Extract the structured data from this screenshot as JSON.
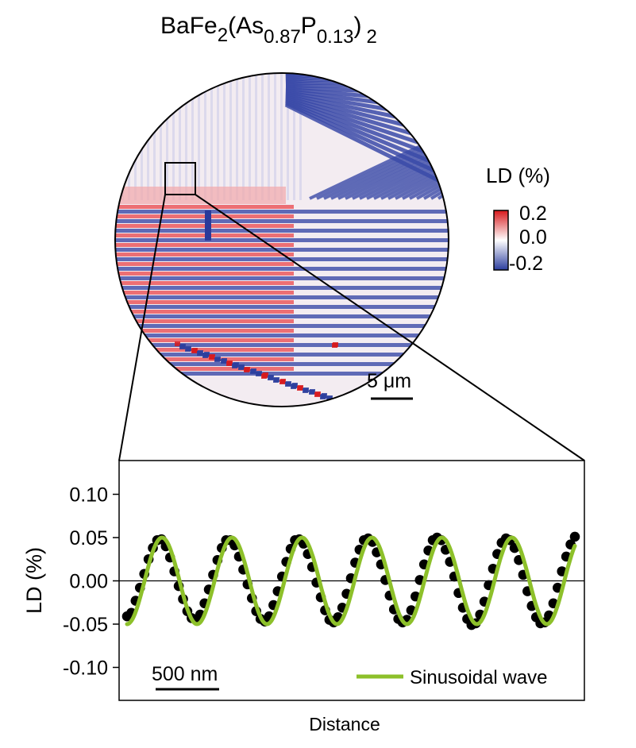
{
  "title": {
    "base1": "BaFe",
    "sub1": "2",
    "base2": "(As",
    "sub2": "0.87",
    "base3": "P",
    "sub3": "0.13",
    "base4": ")",
    "sub4": "2"
  },
  "image_panel": {
    "colorbar": {
      "label": "LD (%)",
      "max_label": "0.2",
      "mid_label": "0.0",
      "min_label": "-0.2",
      "colors": [
        "#d7191c",
        "#ffffff",
        "#2c3e9e"
      ]
    },
    "scale_bar_label": "5 μm",
    "stripe_colors": {
      "red": "#e9464a",
      "blue": "#3a4aa8",
      "white": "#f4ecf0"
    }
  },
  "chart_data": {
    "type": "scatter",
    "xlabel": "Distance",
    "ylabel": "LD (%)",
    "ylim": [
      -0.14,
      0.14
    ],
    "yticks": [
      "0.10",
      "0.05",
      "0.00",
      "-0.05",
      "-0.10"
    ],
    "ytick_values": [
      0.1,
      0.05,
      0.0,
      -0.05,
      -0.1
    ],
    "scale_bar_label": "500 nm",
    "legend": "Sinusoidal wave",
    "legend_position": "bottom-right",
    "fit": {
      "amplitude": 0.05,
      "cycles": 6.4,
      "phase_start": "trough",
      "color": "#8dc02a"
    },
    "points_y": [
      -0.041,
      -0.037,
      -0.023,
      -0.008,
      0.008,
      0.025,
      0.038,
      0.047,
      0.048,
      0.04,
      0.027,
      0.011,
      -0.006,
      -0.021,
      -0.035,
      -0.043,
      -0.045,
      -0.039,
      -0.026,
      -0.01,
      0.007,
      0.024,
      0.038,
      0.047,
      0.047,
      0.041,
      0.028,
      0.013,
      -0.004,
      -0.02,
      -0.035,
      -0.044,
      -0.047,
      -0.041,
      -0.028,
      -0.012,
      0.005,
      0.022,
      0.037,
      0.047,
      0.048,
      0.043,
      0.031,
      0.016,
      -0.002,
      -0.019,
      -0.034,
      -0.045,
      -0.048,
      -0.042,
      -0.031,
      -0.015,
      0.003,
      0.021,
      0.036,
      0.047,
      0.049,
      0.045,
      0.033,
      0.019,
      0.001,
      -0.017,
      -0.033,
      -0.044,
      -0.048,
      -0.045,
      -0.034,
      -0.018,
      0.001,
      0.019,
      0.035,
      0.047,
      0.05,
      0.047,
      0.036,
      0.022,
      0.005,
      -0.014,
      -0.031,
      -0.044,
      -0.051,
      -0.049,
      -0.039,
      -0.024,
      -0.005,
      0.014,
      0.031,
      0.044,
      0.049,
      0.047,
      0.038,
      0.024,
      0.007,
      -0.012,
      -0.029,
      -0.042,
      -0.049,
      -0.048,
      -0.04,
      -0.026,
      -0.008,
      0.011,
      0.028,
      0.042,
      0.051
    ]
  }
}
